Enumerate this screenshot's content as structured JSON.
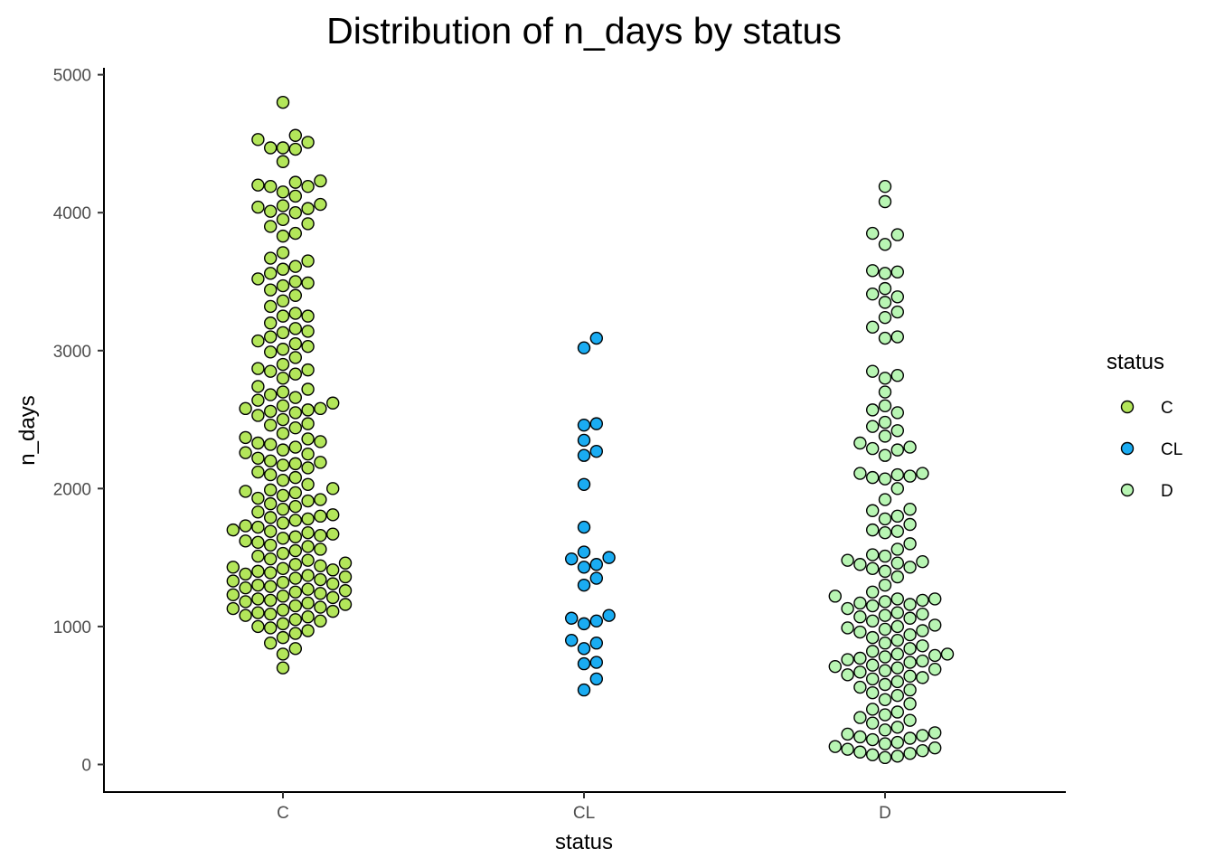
{
  "chart_data": {
    "type": "scatter",
    "title": "Distribution of n_days by status",
    "xlabel": "status",
    "ylabel": "n_days",
    "categories": [
      "C",
      "CL",
      "D"
    ],
    "y_ticks": [
      0,
      1000,
      2000,
      3000,
      4000,
      5000
    ],
    "ylim": [
      -200,
      5050
    ],
    "grid": false,
    "legend": {
      "title": "status",
      "placement": "right",
      "entries": [
        {
          "label": "C",
          "color": "#b3e65a"
        },
        {
          "label": "CL",
          "color": "#1aacf2"
        },
        {
          "label": "D",
          "color": "#b8f5b3"
        }
      ]
    },
    "series": [
      {
        "name": "C",
        "color": "#b3e65a",
        "values": [
          4800,
          4560,
          4530,
          4510,
          4470,
          4470,
          4460,
          4370,
          4230,
          4220,
          4200,
          4190,
          4190,
          4150,
          4120,
          4060,
          4050,
          4040,
          4030,
          4010,
          4000,
          3950,
          3920,
          3900,
          3850,
          3830,
          3710,
          3670,
          3650,
          3610,
          3590,
          3560,
          3520,
          3500,
          3490,
          3470,
          3440,
          3400,
          3360,
          3320,
          3270,
          3250,
          3250,
          3200,
          3160,
          3140,
          3130,
          3100,
          3070,
          3050,
          3030,
          3010,
          2990,
          2950,
          2900,
          2870,
          2860,
          2850,
          2830,
          2800,
          2740,
          2720,
          2700,
          2680,
          2660,
          2640,
          2620,
          2600,
          2580,
          2580,
          2570,
          2560,
          2550,
          2530,
          2500,
          2470,
          2460,
          2440,
          2400,
          2370,
          2360,
          2340,
          2330,
          2320,
          2300,
          2280,
          2260,
          2250,
          2220,
          2200,
          2190,
          2180,
          2170,
          2150,
          2120,
          2100,
          2080,
          2060,
          2030,
          2000,
          1990,
          1980,
          1970,
          1950,
          1930,
          1920,
          1910,
          1890,
          1870,
          1850,
          1830,
          1810,
          1800,
          1790,
          1780,
          1770,
          1750,
          1730,
          1720,
          1700,
          1690,
          1680,
          1670,
          1660,
          1650,
          1640,
          1620,
          1610,
          1590,
          1580,
          1560,
          1550,
          1530,
          1510,
          1490,
          1480,
          1460,
          1450,
          1440,
          1430,
          1420,
          1410,
          1400,
          1390,
          1380,
          1370,
          1360,
          1350,
          1340,
          1330,
          1320,
          1310,
          1300,
          1290,
          1280,
          1270,
          1260,
          1250,
          1240,
          1230,
          1220,
          1210,
          1200,
          1190,
          1180,
          1170,
          1160,
          1150,
          1140,
          1130,
          1120,
          1110,
          1100,
          1090,
          1080,
          1070,
          1050,
          1040,
          1020,
          1000,
          990,
          970,
          950,
          920,
          880,
          840,
          800,
          700
        ]
      },
      {
        "name": "CL",
        "color": "#1aacf2",
        "values": [
          3090,
          3020,
          2470,
          2460,
          2350,
          2270,
          2240,
          2030,
          1720,
          1540,
          1500,
          1490,
          1450,
          1430,
          1350,
          1300,
          1080,
          1060,
          1040,
          1020,
          900,
          880,
          840,
          740,
          730,
          620,
          540
        ]
      },
      {
        "name": "D",
        "color": "#b8f5b3",
        "values": [
          4190,
          4080,
          3850,
          3840,
          3770,
          3580,
          3570,
          3560,
          3450,
          3410,
          3390,
          3350,
          3280,
          3240,
          3170,
          3100,
          3090,
          2850,
          2820,
          2800,
          2700,
          2600,
          2570,
          2550,
          2480,
          2450,
          2420,
          2380,
          2330,
          2300,
          2290,
          2280,
          2240,
          2110,
          2110,
          2100,
          2090,
          2080,
          2070,
          2000,
          1920,
          1850,
          1840,
          1800,
          1780,
          1740,
          1700,
          1690,
          1680,
          1600,
          1560,
          1520,
          1510,
          1480,
          1470,
          1460,
          1450,
          1430,
          1420,
          1400,
          1360,
          1300,
          1250,
          1220,
          1200,
          1200,
          1190,
          1180,
          1170,
          1160,
          1150,
          1130,
          1100,
          1090,
          1080,
          1070,
          1060,
          1040,
          1010,
          1000,
          990,
          980,
          970,
          960,
          940,
          920,
          900,
          880,
          860,
          840,
          820,
          800,
          800,
          790,
          780,
          770,
          760,
          750,
          740,
          720,
          710,
          700,
          690,
          680,
          670,
          650,
          640,
          630,
          620,
          600,
          580,
          560,
          540,
          520,
          500,
          470,
          440,
          400,
          380,
          360,
          340,
          320,
          300,
          270,
          250,
          230,
          220,
          210,
          200,
          190,
          180,
          160,
          150,
          130,
          120,
          110,
          100,
          90,
          80,
          70,
          60,
          50
        ]
      }
    ]
  }
}
